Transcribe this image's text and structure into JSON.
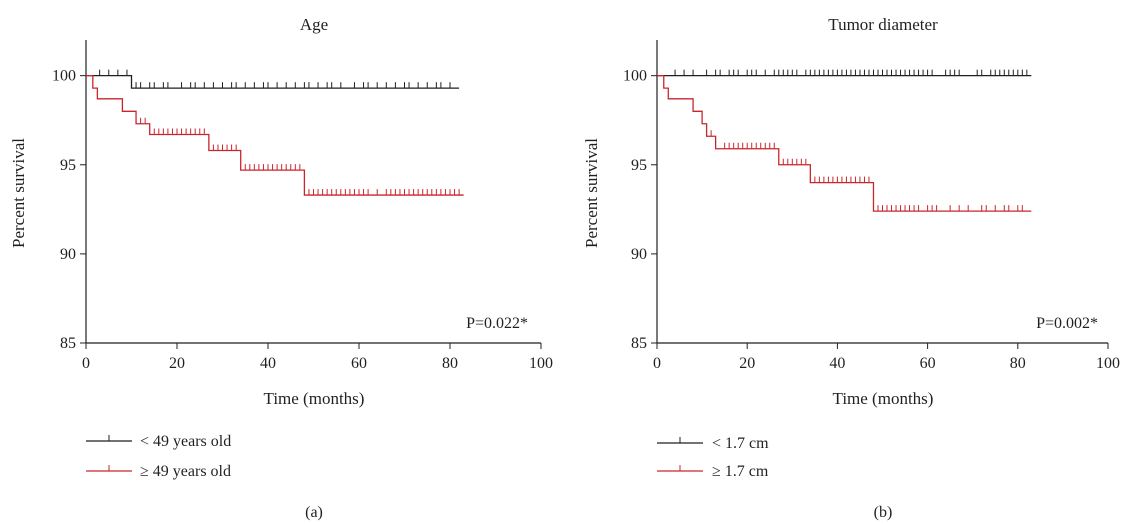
{
  "chart_data": [
    {
      "type": "line",
      "panel_label": "(a)",
      "title": "Age",
      "xlabel": "Time (months)",
      "ylabel": "Percent survival",
      "xlim": [
        0,
        100
      ],
      "ylim": [
        85,
        102
      ],
      "xticks": [
        "0",
        "20",
        "40",
        "60",
        "80",
        "100"
      ],
      "yticks": [
        "85",
        "90",
        "95",
        "100"
      ],
      "annotation": "P=0.022*",
      "series": [
        {
          "name": "< 49 years old",
          "color": "#231f20",
          "steps": [
            [
              0,
              100
            ],
            [
              10,
              99.3
            ],
            [
              82,
              99.3
            ]
          ],
          "censors": [
            3,
            5,
            7,
            9,
            11,
            12,
            14,
            15,
            17,
            18,
            21,
            23,
            24,
            26,
            28,
            30,
            32,
            33,
            35,
            37,
            39,
            40,
            42,
            44,
            46,
            48,
            49,
            51,
            53,
            54,
            56,
            59,
            61,
            62,
            64,
            66,
            68,
            70,
            71,
            73,
            75,
            77,
            78,
            80
          ]
        },
        {
          "name": "≥ 49 years old",
          "color": "#c8262d",
          "steps": [
            [
              0,
              100
            ],
            [
              1.5,
              99.3
            ],
            [
              2.5,
              98.7
            ],
            [
              8,
              98
            ],
            [
              11,
              97.3
            ],
            [
              14,
              96.7
            ],
            [
              27,
              95.8
            ],
            [
              34,
              94.7
            ],
            [
              48,
              93.3
            ],
            [
              83,
              93.3
            ]
          ],
          "censors": [
            12,
            13,
            15,
            16,
            17,
            18,
            19,
            20,
            21,
            22,
            23,
            24,
            25,
            26,
            28,
            29,
            30,
            31,
            32,
            33,
            35,
            36,
            37,
            38,
            39,
            40,
            41,
            42,
            43,
            44,
            45,
            46,
            47,
            49,
            50,
            51,
            52,
            53,
            54,
            55,
            56,
            57,
            58,
            59,
            60,
            61,
            62,
            64,
            66,
            67,
            68,
            69,
            70,
            71,
            72,
            73,
            74,
            75,
            76,
            77,
            78,
            79,
            80,
            81,
            82
          ]
        }
      ]
    },
    {
      "type": "line",
      "panel_label": "(b)",
      "title": "Tumor diameter",
      "xlabel": "Time (months)",
      "ylabel": "Percent survival",
      "xlim": [
        0,
        100
      ],
      "ylim": [
        85,
        102
      ],
      "xticks": [
        "0",
        "20",
        "40",
        "60",
        "80",
        "100"
      ],
      "yticks": [
        "85",
        "90",
        "95",
        "100"
      ],
      "annotation": "P=0.002*",
      "series": [
        {
          "name": "< 1.7 cm",
          "color": "#231f20",
          "steps": [
            [
              0,
              100
            ],
            [
              83,
              100
            ]
          ],
          "censors": [
            4,
            6,
            8,
            11,
            13,
            14,
            16,
            17,
            18,
            20,
            21,
            22,
            24,
            26,
            27,
            28,
            29,
            30,
            31,
            33,
            34,
            35,
            36,
            37,
            38,
            39,
            40,
            41,
            42,
            43,
            44,
            45,
            46,
            47,
            48,
            49,
            50,
            51,
            52,
            53,
            54,
            55,
            56,
            57,
            58,
            59,
            60,
            61,
            64,
            65,
            66,
            67,
            71,
            72,
            74,
            75,
            76,
            77,
            78,
            79,
            80,
            81,
            82
          ]
        },
        {
          "name": "≥ 1.7 cm",
          "color": "#c8262d",
          "steps": [
            [
              0,
              100
            ],
            [
              1.5,
              99.3
            ],
            [
              2.5,
              98.7
            ],
            [
              8,
              98
            ],
            [
              10,
              97.3
            ],
            [
              11,
              96.6
            ],
            [
              13,
              95.9
            ],
            [
              27,
              95
            ],
            [
              34,
              94
            ],
            [
              48,
              92.4
            ],
            [
              83,
              92.4
            ]
          ],
          "censors": [
            12,
            15,
            16,
            17,
            18,
            19,
            20,
            21,
            22,
            23,
            24,
            25,
            26,
            28,
            29,
            30,
            31,
            32,
            33,
            35,
            36,
            37,
            38,
            39,
            40,
            41,
            42,
            43,
            44,
            45,
            46,
            47,
            49,
            50,
            51,
            52,
            53,
            54,
            55,
            56,
            57,
            58,
            60,
            61,
            62,
            65,
            67,
            69,
            72,
            73,
            75,
            77,
            78,
            80,
            81
          ]
        }
      ]
    }
  ]
}
